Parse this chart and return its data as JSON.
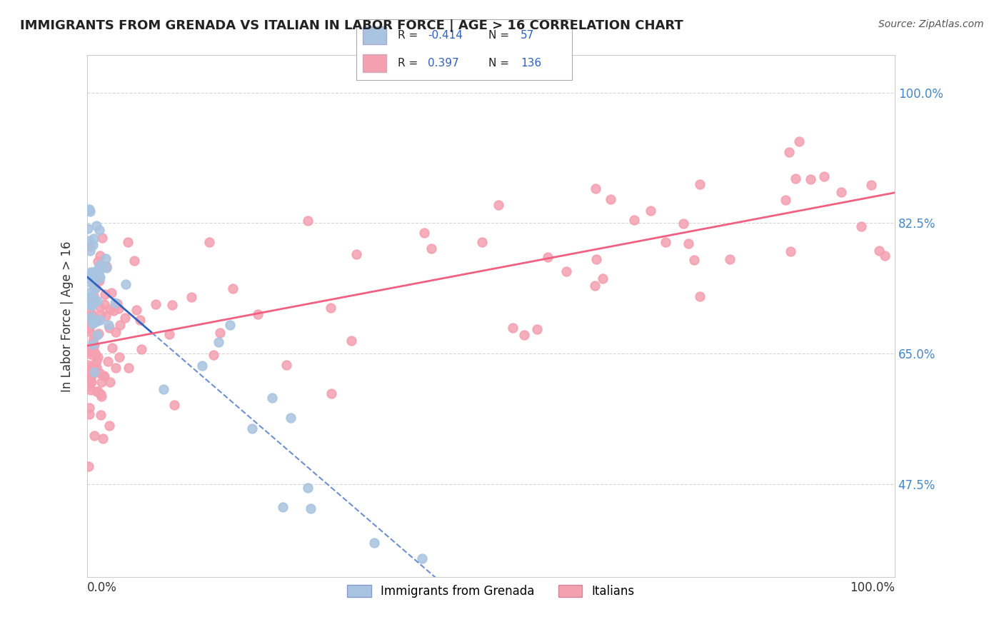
{
  "title": "IMMIGRANTS FROM GRENADA VS ITALIAN IN LABOR FORCE | AGE > 16 CORRELATION CHART",
  "source": "Source: ZipAtlas.com",
  "ylabel": "In Labor Force | Age > 16",
  "yticks": [
    "47.5%",
    "65.0%",
    "82.5%",
    "100.0%"
  ],
  "ytick_values": [
    0.475,
    0.65,
    0.825,
    1.0
  ],
  "legend_grenada_R": "-0.414",
  "legend_grenada_N": "57",
  "legend_italian_R": "0.397",
  "legend_italian_N": "136",
  "grenada_color": "#a8c4e0",
  "italian_color": "#f4a0b0",
  "grenada_line_color": "#3060c0",
  "italian_line_color": "#f06080",
  "background_color": "#ffffff",
  "grid_color": "#cccccc"
}
